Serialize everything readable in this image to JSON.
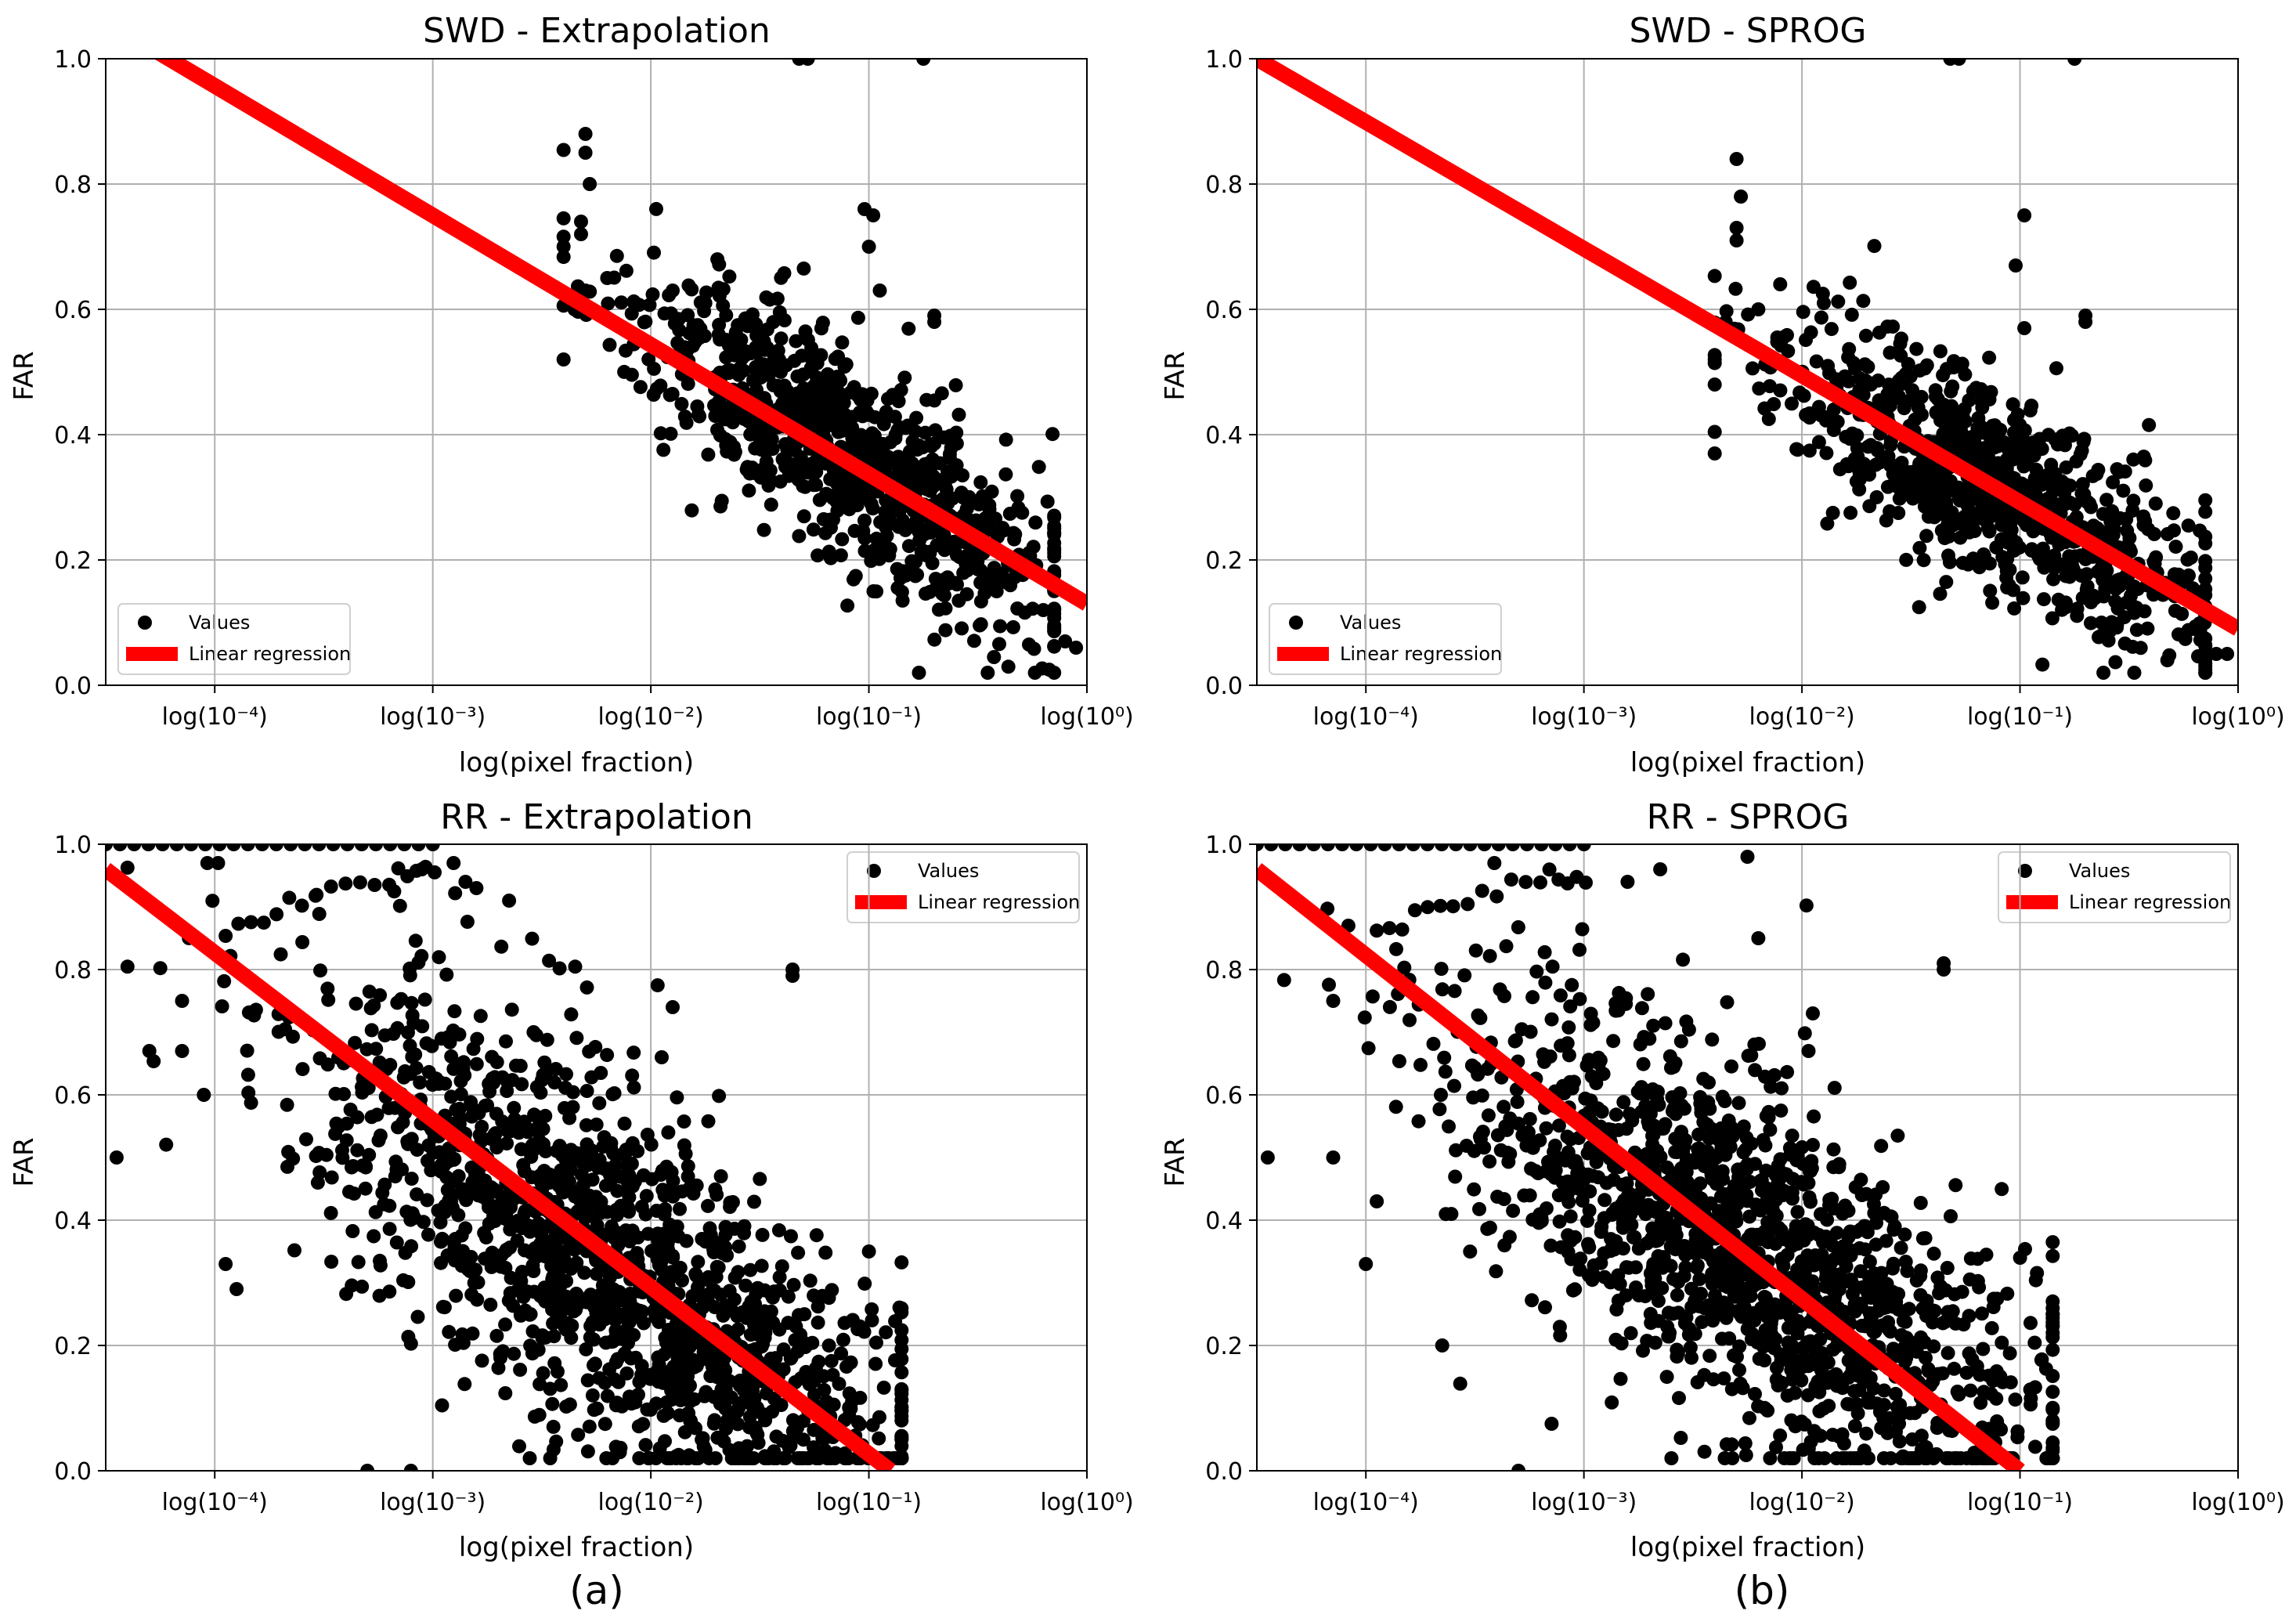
{
  "figure_captions": [
    "(a)",
    "(b)"
  ],
  "chart_data": [
    {
      "type": "scatter",
      "panel": "top-left",
      "title": "SWD - Extrapolation",
      "xlabel": "log(pixel fraction)",
      "ylabel": "FAR",
      "x_scale": "log10",
      "xlim_log10": [
        -4.5,
        0
      ],
      "ylim": [
        0,
        1
      ],
      "grid": true,
      "x_ticks": [
        {
          "exp": -4,
          "label": "log(10⁻⁴)"
        },
        {
          "exp": -3,
          "label": "log(10⁻³)"
        },
        {
          "exp": -2,
          "label": "log(10⁻²)"
        },
        {
          "exp": -1,
          "label": "log(10⁻¹)"
        },
        {
          "exp": 0,
          "label": "log(10⁰)"
        }
      ],
      "y_ticks": [
        "0.0",
        "0.2",
        "0.4",
        "0.6",
        "0.8",
        "1.0"
      ],
      "legend": {
        "position": "lower left",
        "entries": [
          "Values",
          "Linear regression"
        ]
      },
      "regression": {
        "x_log10": [
          -4.5,
          0
        ],
        "y": [
          1.06,
          0.13
        ]
      },
      "cloud": {
        "n": 900,
        "center": [
          -1.1,
          0.37
        ],
        "spread": [
          0.5,
          0.07
        ],
        "slope": -0.21,
        "xmin": -2.4,
        "xmax": -0.15
      },
      "points": [
        {
          "x_log10": -2.3,
          "y": 0.88
        },
        {
          "x_log10": -2.3,
          "y": 0.85
        },
        {
          "x_log10": -2.28,
          "y": 0.8
        },
        {
          "x_log10": -2.32,
          "y": 0.74
        },
        {
          "x_log10": -2.32,
          "y": 0.72
        },
        {
          "x_log10": -2.4,
          "y": 0.52
        },
        {
          "x_log10": -2.35,
          "y": 0.6
        },
        {
          "x_log10": -2.3,
          "y": 0.63
        },
        {
          "x_log10": -2.2,
          "y": 0.65
        },
        {
          "x_log10": -1.9,
          "y": 0.63
        },
        {
          "x_log10": -1.75,
          "y": 0.61
        },
        {
          "x_log10": -1.02,
          "y": 0.76
        },
        {
          "x_log10": -0.98,
          "y": 0.75
        },
        {
          "x_log10": -1.0,
          "y": 0.7
        },
        {
          "x_log10": -0.95,
          "y": 0.63
        },
        {
          "x_log10": -0.7,
          "y": 0.58
        },
        {
          "x_log10": -0.7,
          "y": 0.59
        },
        {
          "x_log10": -1.32,
          "y": 1.0
        },
        {
          "x_log10": -1.28,
          "y": 1.0
        },
        {
          "x_log10": -0.75,
          "y": 1.0
        },
        {
          "x_log10": -0.05,
          "y": 0.06
        },
        {
          "x_log10": -0.1,
          "y": 0.07
        },
        {
          "x_log10": -0.2,
          "y": 0.12
        }
      ]
    },
    {
      "type": "scatter",
      "panel": "top-right",
      "title": "SWD - SPROG",
      "xlabel": "log(pixel fraction)",
      "ylabel": "FAR",
      "x_scale": "log10",
      "xlim_log10": [
        -4.5,
        0
      ],
      "ylim": [
        0,
        1
      ],
      "grid": true,
      "x_ticks": [
        {
          "exp": -4,
          "label": "log(10⁻⁴)"
        },
        {
          "exp": -3,
          "label": "log(10⁻³)"
        },
        {
          "exp": -2,
          "label": "log(10⁻²)"
        },
        {
          "exp": -1,
          "label": "log(10⁻¹)"
        },
        {
          "exp": 0,
          "label": "log(10⁰)"
        }
      ],
      "y_ticks": [
        "0.0",
        "0.2",
        "0.4",
        "0.6",
        "0.8",
        "1.0"
      ],
      "legend": {
        "position": "lower left",
        "entries": [
          "Values",
          "Linear regression"
        ]
      },
      "regression": {
        "x_log10": [
          -4.5,
          0
        ],
        "y": [
          1.0,
          0.09
        ]
      },
      "cloud": {
        "n": 900,
        "center": [
          -1.1,
          0.31
        ],
        "spread": [
          0.5,
          0.065
        ],
        "slope": -0.2,
        "xmin": -2.4,
        "xmax": -0.15
      },
      "points": [
        {
          "x_log10": -2.3,
          "y": 0.84
        },
        {
          "x_log10": -2.28,
          "y": 0.78
        },
        {
          "x_log10": -2.3,
          "y": 0.73
        },
        {
          "x_log10": -2.3,
          "y": 0.71
        },
        {
          "x_log10": -2.4,
          "y": 0.48
        },
        {
          "x_log10": -2.4,
          "y": 0.52
        },
        {
          "x_log10": -2.35,
          "y": 0.58
        },
        {
          "x_log10": -2.2,
          "y": 0.6
        },
        {
          "x_log10": -2.1,
          "y": 0.64
        },
        {
          "x_log10": -1.9,
          "y": 0.61
        },
        {
          "x_log10": -1.02,
          "y": 0.67
        },
        {
          "x_log10": -0.98,
          "y": 0.75
        },
        {
          "x_log10": -0.98,
          "y": 0.57
        },
        {
          "x_log10": -0.7,
          "y": 0.58
        },
        {
          "x_log10": -0.7,
          "y": 0.59
        },
        {
          "x_log10": -1.32,
          "y": 1.0
        },
        {
          "x_log10": -1.28,
          "y": 1.0
        },
        {
          "x_log10": -0.75,
          "y": 1.0
        },
        {
          "x_log10": -0.05,
          "y": 0.05
        },
        {
          "x_log10": -0.1,
          "y": 0.05
        },
        {
          "x_log10": -0.2,
          "y": 0.09
        }
      ]
    },
    {
      "type": "scatter",
      "panel": "bottom-left",
      "title": "RR - Extrapolation",
      "xlabel": "log(pixel fraction)",
      "ylabel": "FAR",
      "x_scale": "log10",
      "xlim_log10": [
        -4.5,
        0
      ],
      "ylim": [
        0,
        1
      ],
      "grid": true,
      "x_ticks": [
        {
          "exp": -4,
          "label": "log(10⁻⁴)"
        },
        {
          "exp": -3,
          "label": "log(10⁻³)"
        },
        {
          "exp": -2,
          "label": "log(10⁻²)"
        },
        {
          "exp": -1,
          "label": "log(10⁻¹)"
        },
        {
          "exp": 0,
          "label": "log(10⁰)"
        }
      ],
      "y_ticks": [
        "0.0",
        "0.2",
        "0.4",
        "0.6",
        "0.8",
        "1.0"
      ],
      "legend": {
        "position": "upper right",
        "entries": [
          "Values",
          "Linear regression"
        ]
      },
      "regression": {
        "x_log10": [
          -4.5,
          -0.9
        ],
        "y": [
          0.96,
          0.0
        ]
      },
      "cloud": {
        "n": 1500,
        "center": [
          -2.2,
          0.33
        ],
        "spread": [
          0.7,
          0.12
        ],
        "slope": -0.22,
        "xmin": -4.4,
        "xmax": -0.85
      },
      "points": [
        {
          "x_log10": -4.45,
          "y": 0.5
        },
        {
          "x_log10": -4.3,
          "y": 0.67
        },
        {
          "x_log10": -4.15,
          "y": 0.67
        },
        {
          "x_log10": -4.05,
          "y": 0.6
        },
        {
          "x_log10": -3.95,
          "y": 0.33
        },
        {
          "x_log10": -3.9,
          "y": 0.29
        },
        {
          "x_log10": -3.3,
          "y": 0.0
        },
        {
          "x_log10": -3.1,
          "y": 0.0
        },
        {
          "x_log10": -1.0,
          "y": 0.35
        },
        {
          "x_log10": -1.35,
          "y": 0.79
        },
        {
          "x_log10": -1.35,
          "y": 0.8
        },
        {
          "x_log10": -1.9,
          "y": 0.74
        },
        {
          "x_log10": -1.95,
          "y": 0.66
        },
        {
          "x_log10": -1.92,
          "y": 0.54
        },
        {
          "x_log10": -2.65,
          "y": 0.91
        },
        {
          "x_log10": -2.85,
          "y": 0.94
        },
        {
          "x_log10": -2.8,
          "y": 0.93
        },
        {
          "x_log10": -3.05,
          "y": 0.96
        },
        {
          "x_log10": -4.15,
          "y": 0.75
        }
      ],
      "arc": {
        "from": [
          -4.5,
          1.0
        ],
        "to": [
          -3.0,
          1.0
        ],
        "n": 24,
        "curve": [
          [
            -3.95,
            0.86
          ],
          [
            -3.6,
            0.91
          ],
          [
            -3.2,
            0.95
          ],
          [
            -2.95,
            0.95
          ]
        ]
      }
    },
    {
      "type": "scatter",
      "panel": "bottom-right",
      "title": "RR - SPROG",
      "xlabel": "log(pixel fraction)",
      "ylabel": "FAR",
      "x_scale": "log10",
      "xlim_log10": [
        -4.5,
        0
      ],
      "ylim": [
        0,
        1
      ],
      "grid": true,
      "x_ticks": [
        {
          "exp": -4,
          "label": "log(10⁻⁴)"
        },
        {
          "exp": -3,
          "label": "log(10⁻³)"
        },
        {
          "exp": -2,
          "label": "log(10⁻²)"
        },
        {
          "exp": -1,
          "label": "log(10⁻¹)"
        },
        {
          "exp": 0,
          "label": "log(10⁰)"
        }
      ],
      "y_ticks": [
        "0.0",
        "0.2",
        "0.4",
        "0.6",
        "0.8",
        "1.0"
      ],
      "legend": {
        "position": "upper right",
        "entries": [
          "Values",
          "Linear regression"
        ]
      },
      "regression": {
        "x_log10": [
          -4.5,
          -1.0
        ],
        "y": [
          0.96,
          0.0
        ]
      },
      "cloud": {
        "n": 1500,
        "center": [
          -2.2,
          0.33
        ],
        "spread": [
          0.7,
          0.12
        ],
        "slope": -0.22,
        "xmin": -4.4,
        "xmax": -0.85
      },
      "points": [
        {
          "x_log10": -4.45,
          "y": 0.5
        },
        {
          "x_log10": -4.15,
          "y": 0.75
        },
        {
          "x_log10": -4.15,
          "y": 0.5
        },
        {
          "x_log10": -4.0,
          "y": 0.33
        },
        {
          "x_log10": -3.95,
          "y": 0.43
        },
        {
          "x_log10": -3.65,
          "y": 0.2
        },
        {
          "x_log10": -3.3,
          "y": 0.0
        },
        {
          "x_log10": -1.0,
          "y": 0.34
        },
        {
          "x_log10": -1.35,
          "y": 0.8
        },
        {
          "x_log10": -1.35,
          "y": 0.81
        },
        {
          "x_log10": -2.25,
          "y": 0.98
        },
        {
          "x_log10": -1.95,
          "y": 0.73
        },
        {
          "x_log10": -1.97,
          "y": 0.67
        },
        {
          "x_log10": -1.95,
          "y": 0.52
        },
        {
          "x_log10": -2.2,
          "y": 0.85
        },
        {
          "x_log10": -2.65,
          "y": 0.96
        },
        {
          "x_log10": -2.8,
          "y": 0.94
        }
      ],
      "arc": {
        "from": [
          -4.5,
          1.0
        ],
        "to": [
          -3.0,
          1.0
        ],
        "n": 24,
        "curve": [
          [
            -3.95,
            0.86
          ],
          [
            -3.6,
            0.91
          ],
          [
            -3.2,
            0.95
          ],
          [
            -2.95,
            0.95
          ]
        ]
      }
    }
  ]
}
